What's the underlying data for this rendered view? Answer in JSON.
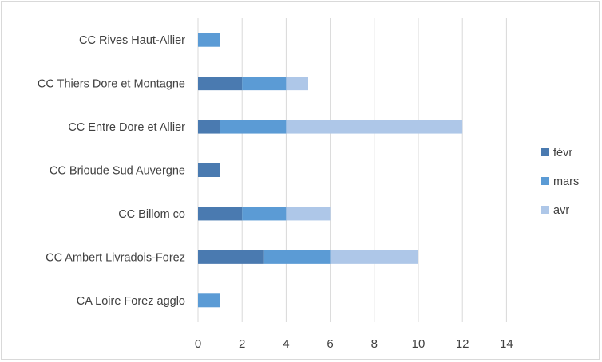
{
  "chart_data": {
    "type": "bar",
    "orientation": "horizontal",
    "stacked": true,
    "categories": [
      "CC Rives Haut-Allier",
      "CC Thiers Dore et Montagne",
      "CC Entre Dore et Allier",
      "CC Brioude Sud Auvergne",
      "CC Billom co",
      "CC Ambert Livradois-Forez",
      "CA Loire Forez agglo"
    ],
    "series": [
      {
        "name": "févr",
        "color": "#4a7ab0",
        "values": [
          0,
          2,
          1,
          1,
          2,
          3,
          0
        ]
      },
      {
        "name": "mars",
        "color": "#5b9bd5",
        "values": [
          1,
          2,
          3,
          0,
          2,
          3,
          1
        ]
      },
      {
        "name": "avr",
        "color": "#aec7e8",
        "values": [
          0,
          1,
          8,
          0,
          2,
          4,
          0
        ]
      }
    ],
    "xticks": [
      "0",
      "2",
      "4",
      "6",
      "8",
      "10",
      "12",
      "14"
    ],
    "xlim": [
      0,
      14
    ],
    "grid": true,
    "legend_position": "right",
    "title": "",
    "xlabel": "",
    "ylabel": ""
  }
}
